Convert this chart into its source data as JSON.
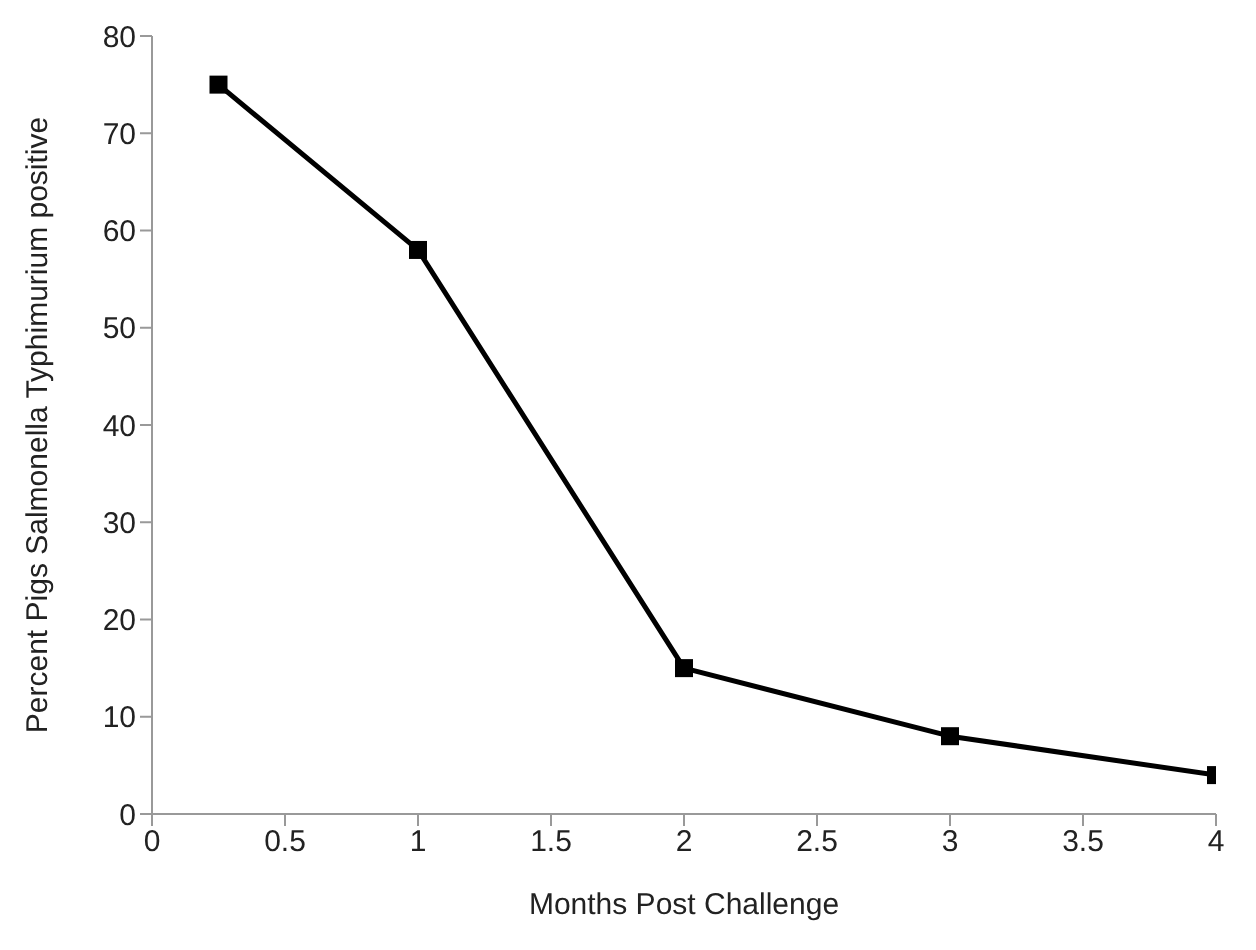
{
  "chart_data": {
    "type": "line",
    "xlabel": "Months Post Challenge",
    "ylabel": "Percent Pigs Salmonella Typhimurium positive",
    "x": [
      0.25,
      1,
      2,
      3,
      4
    ],
    "series": [
      {
        "color": "#000000",
        "values": [
          75,
          58,
          15,
          8,
          4
        ]
      }
    ],
    "xlim": [
      0,
      4
    ],
    "xticks": [
      0,
      0.5,
      1,
      1.5,
      2,
      2.5,
      3,
      3.5,
      4
    ],
    "ylim": [
      0,
      80
    ],
    "yticks": [
      0,
      10,
      20,
      30,
      40,
      50,
      60,
      70,
      80
    ],
    "grid": false,
    "legend": false,
    "marker": "square",
    "line_style": "solid"
  }
}
